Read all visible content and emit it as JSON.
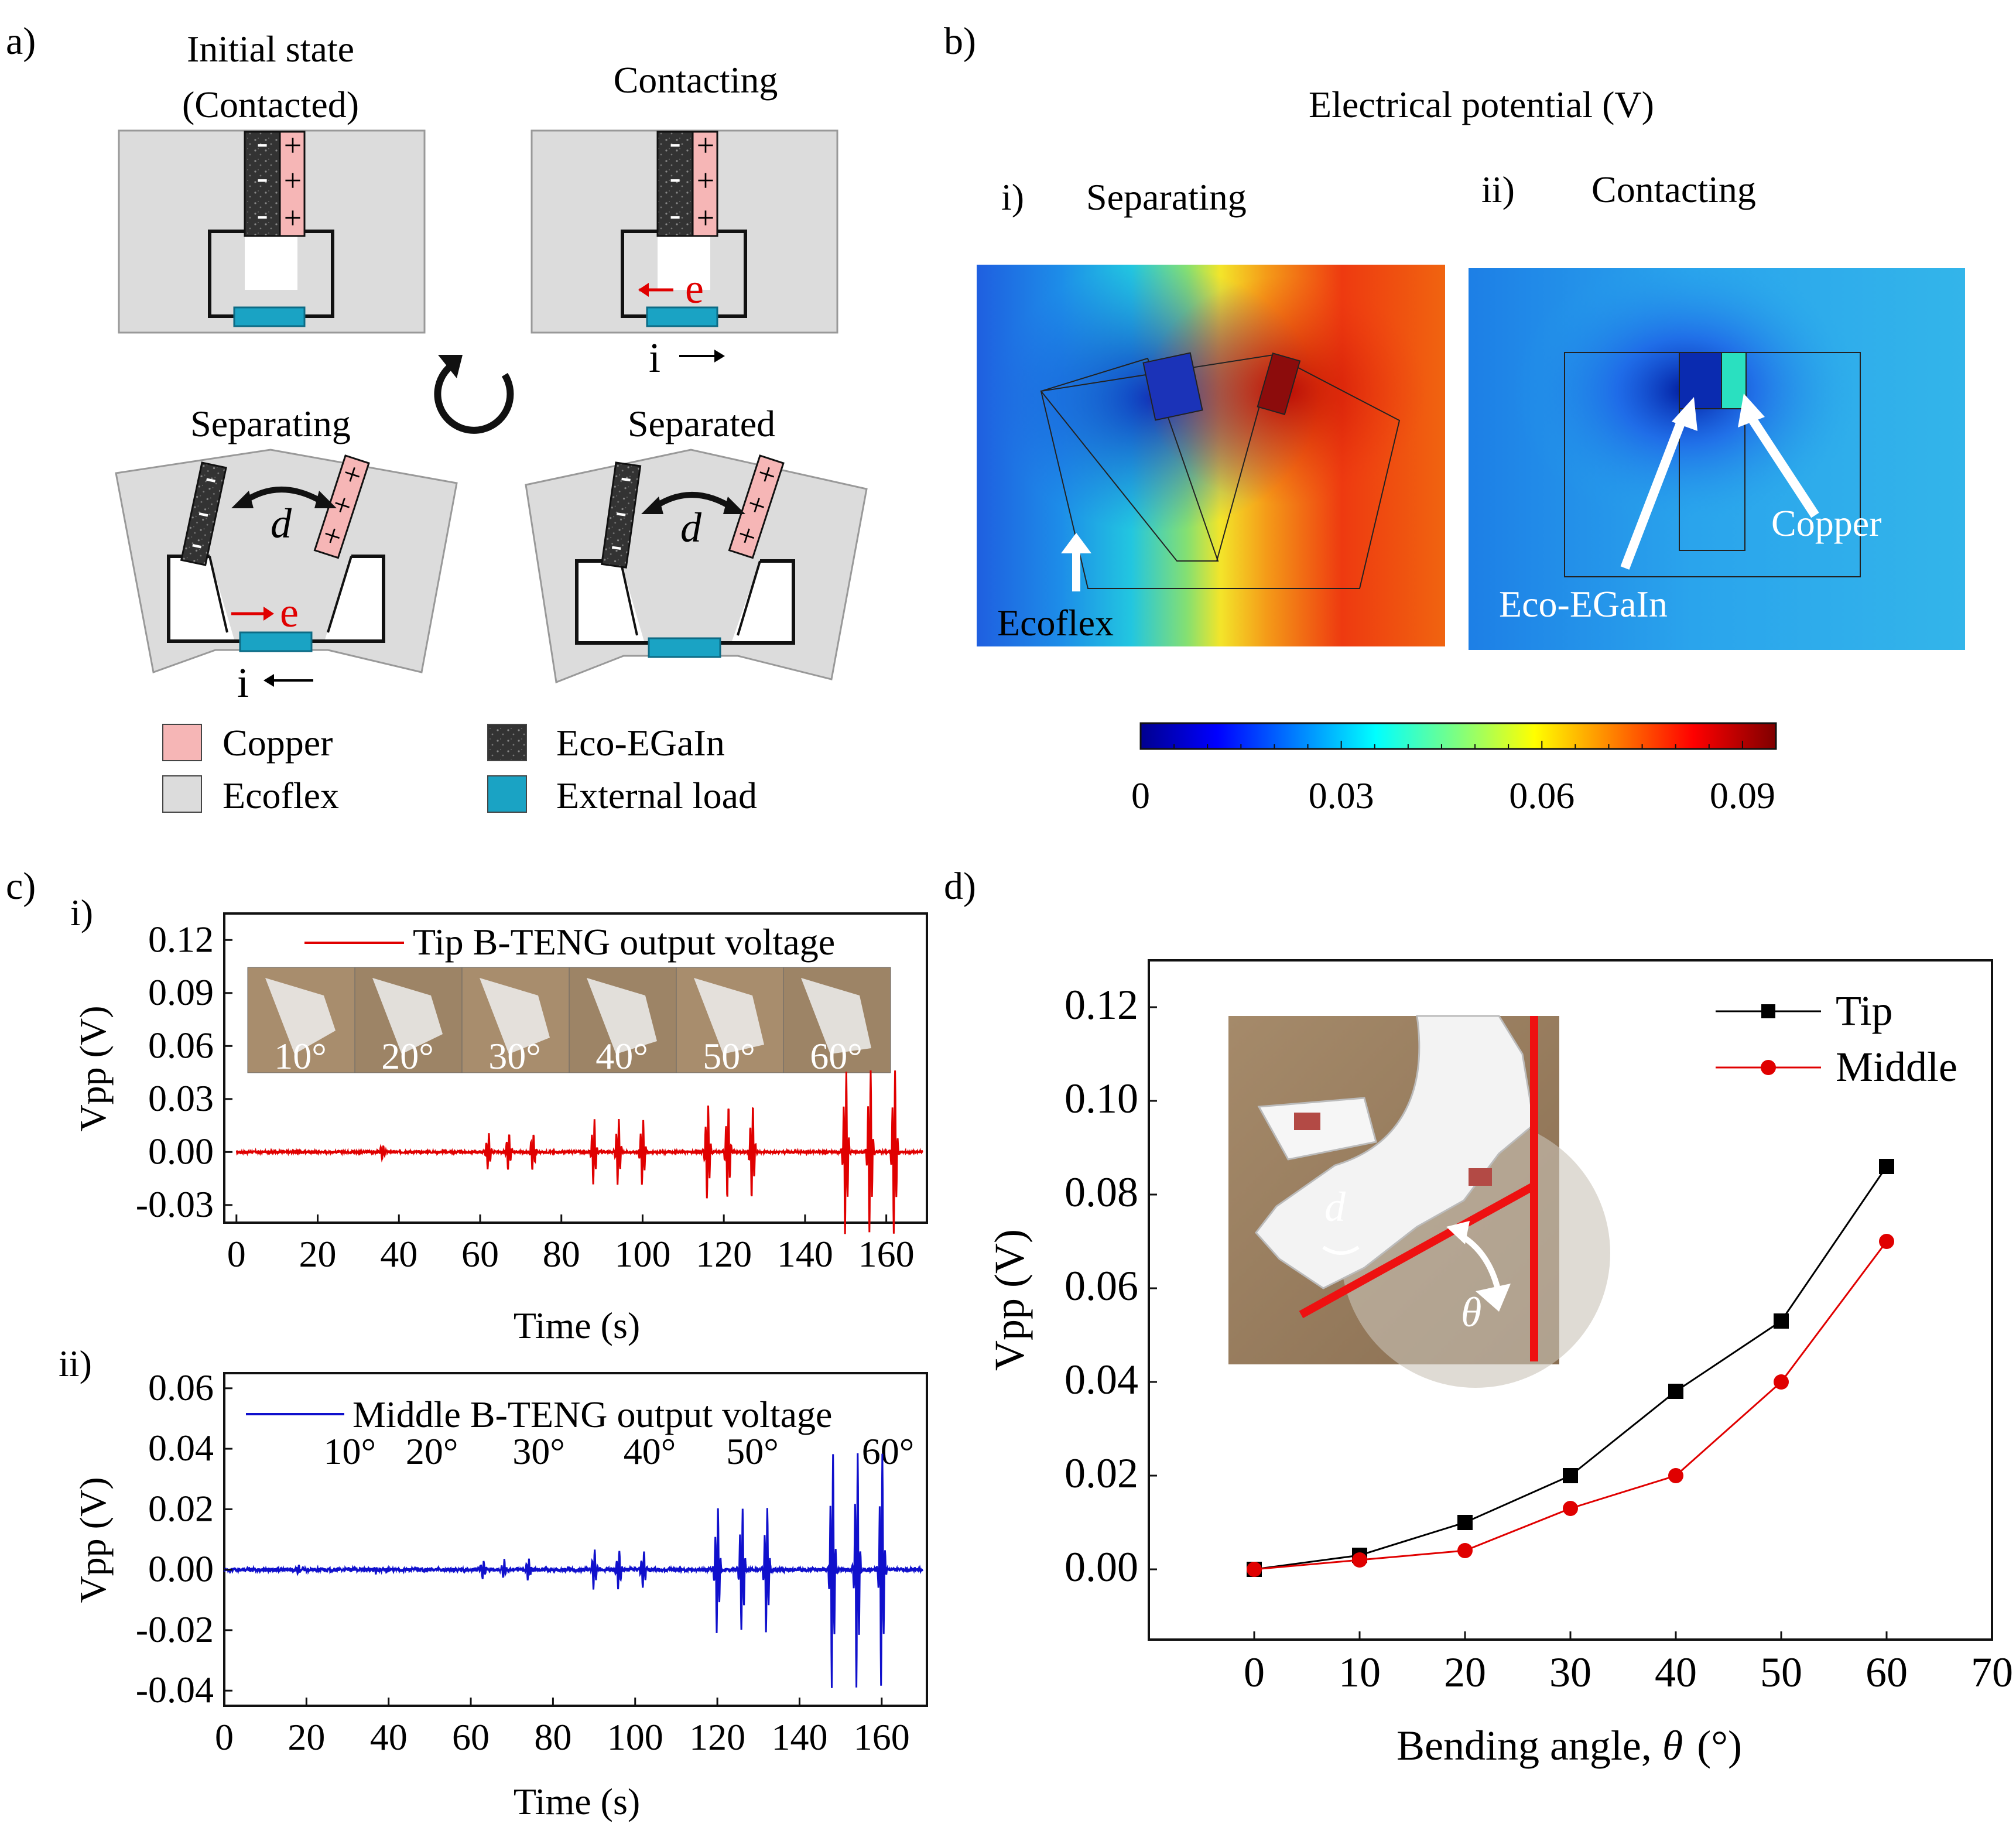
{
  "panel_labels": {
    "a": "a)",
    "b": "b)",
    "c": "c)",
    "d": "d)"
  },
  "panel_a": {
    "states": {
      "initial": "Initial state",
      "initial_sub": "(Contacted)",
      "contacting": "Contacting",
      "separating": "Separating",
      "separated": "Separated"
    },
    "electron": "e",
    "current": "i",
    "distance": "d",
    "charges": {
      "neg": "-",
      "pos": "+"
    },
    "legend": [
      "Copper",
      "Ecoflex",
      "Eco-EGaIn",
      "External load"
    ],
    "colors": {
      "copper": "#f6b6b6",
      "ecoflex": "#dcdcdc",
      "egain": "#3a3a3a",
      "load": "#1aa3c4",
      "arrow": "#e00000"
    }
  },
  "panel_b": {
    "title": "Electrical potential (V)",
    "sub_i": "i)",
    "sub_i_label": "Separating",
    "sub_ii": "ii)",
    "sub_ii_label": "Contacting",
    "annotations": {
      "ecoflex": "Ecoflex",
      "egain": "Eco-EGaIn",
      "copper": "Copper"
    },
    "colorbar": {
      "ticks": [
        "0",
        "0.03",
        "0.06",
        "0.09"
      ],
      "min": 0,
      "max": 0.095
    }
  },
  "chart_data": [
    {
      "id": "c-i",
      "type": "line",
      "label": "i)",
      "title": "",
      "legend": "Tip B-TENG output voltage",
      "xlabel": "Time (s)",
      "ylabel": "Vpp (V)",
      "xlim": [
        -3,
        170
      ],
      "ylim": [
        -0.04,
        0.135
      ],
      "xticks": [
        "0",
        "20",
        "40",
        "60",
        "80",
        "100",
        "120",
        "140",
        "160"
      ],
      "yticks": [
        "-0.03",
        "0.00",
        "0.03",
        "0.06",
        "0.09",
        "0.12"
      ],
      "inset_angles": [
        "10°",
        "20°",
        "30°",
        "40°",
        "50°",
        "60°"
      ],
      "color": "#e00000",
      "bursts": [
        {
          "t": [
            36
          ],
          "amp": 0.004
        },
        {
          "t": [
            62,
            67,
            73
          ],
          "amp": 0.01
        },
        {
          "t": [
            88,
            94,
            100
          ],
          "amp": 0.018
        },
        {
          "t": [
            116,
            121,
            127
          ],
          "amp": 0.026
        },
        {
          "t": [
            150,
            156,
            162
          ],
          "amp": 0.045
        }
      ]
    },
    {
      "id": "c-ii",
      "type": "line",
      "label": "ii)",
      "legend": "Middle B-TENG output voltage",
      "xlabel": "Time (s)",
      "ylabel": "Vpp (V)",
      "xlim": [
        0,
        171
      ],
      "ylim": [
        -0.045,
        0.065
      ],
      "xticks": [
        "0",
        "20",
        "40",
        "60",
        "80",
        "100",
        "120",
        "140",
        "160"
      ],
      "yticks": [
        "-0.04",
        "-0.02",
        "0.00",
        "0.02",
        "0.04",
        "0.06"
      ],
      "angle_labels": [
        "10°",
        "20°",
        "30°",
        "40°",
        "50°",
        "60°"
      ],
      "color": "#1010cc",
      "bursts": [
        {
          "t": [
            18
          ],
          "amp": 0.001
        },
        {
          "t": [
            37
          ],
          "amp": 0.001
        },
        {
          "t": [
            63,
            68,
            74
          ],
          "amp": 0.003
        },
        {
          "t": [
            90,
            96,
            102
          ],
          "amp": 0.006
        },
        {
          "t": [
            120,
            126,
            132
          ],
          "amp": 0.02
        },
        {
          "t": [
            148,
            154,
            160
          ],
          "amp": 0.038
        }
      ]
    },
    {
      "id": "d",
      "type": "line",
      "xlabel": "Bending angle, θ (°)",
      "xlabel_prefix": "Bending angle, ",
      "xlabel_symbol": "θ",
      "xlabel_unit": "(°)",
      "ylabel": "Vpp (V)",
      "xlim": [
        -10,
        70
      ],
      "ylim": [
        -0.015,
        0.13
      ],
      "xticks": [
        "0",
        "10",
        "20",
        "30",
        "40",
        "50",
        "60",
        "70"
      ],
      "yticks": [
        "0.00",
        "0.02",
        "0.04",
        "0.06",
        "0.08",
        "0.10",
        "0.12"
      ],
      "x": [
        0,
        10,
        20,
        30,
        40,
        50,
        60
      ],
      "series": [
        {
          "name": "Tip",
          "color": "#000000",
          "marker": "square",
          "values": [
            0.0,
            0.003,
            0.01,
            0.02,
            0.038,
            0.053,
            0.086
          ]
        },
        {
          "name": "Middle",
          "color": "#e00000",
          "marker": "circle",
          "values": [
            0.0,
            0.002,
            0.004,
            0.013,
            0.02,
            0.04,
            0.07
          ]
        }
      ],
      "inset": {
        "d": "d",
        "theta": "θ"
      }
    }
  ]
}
